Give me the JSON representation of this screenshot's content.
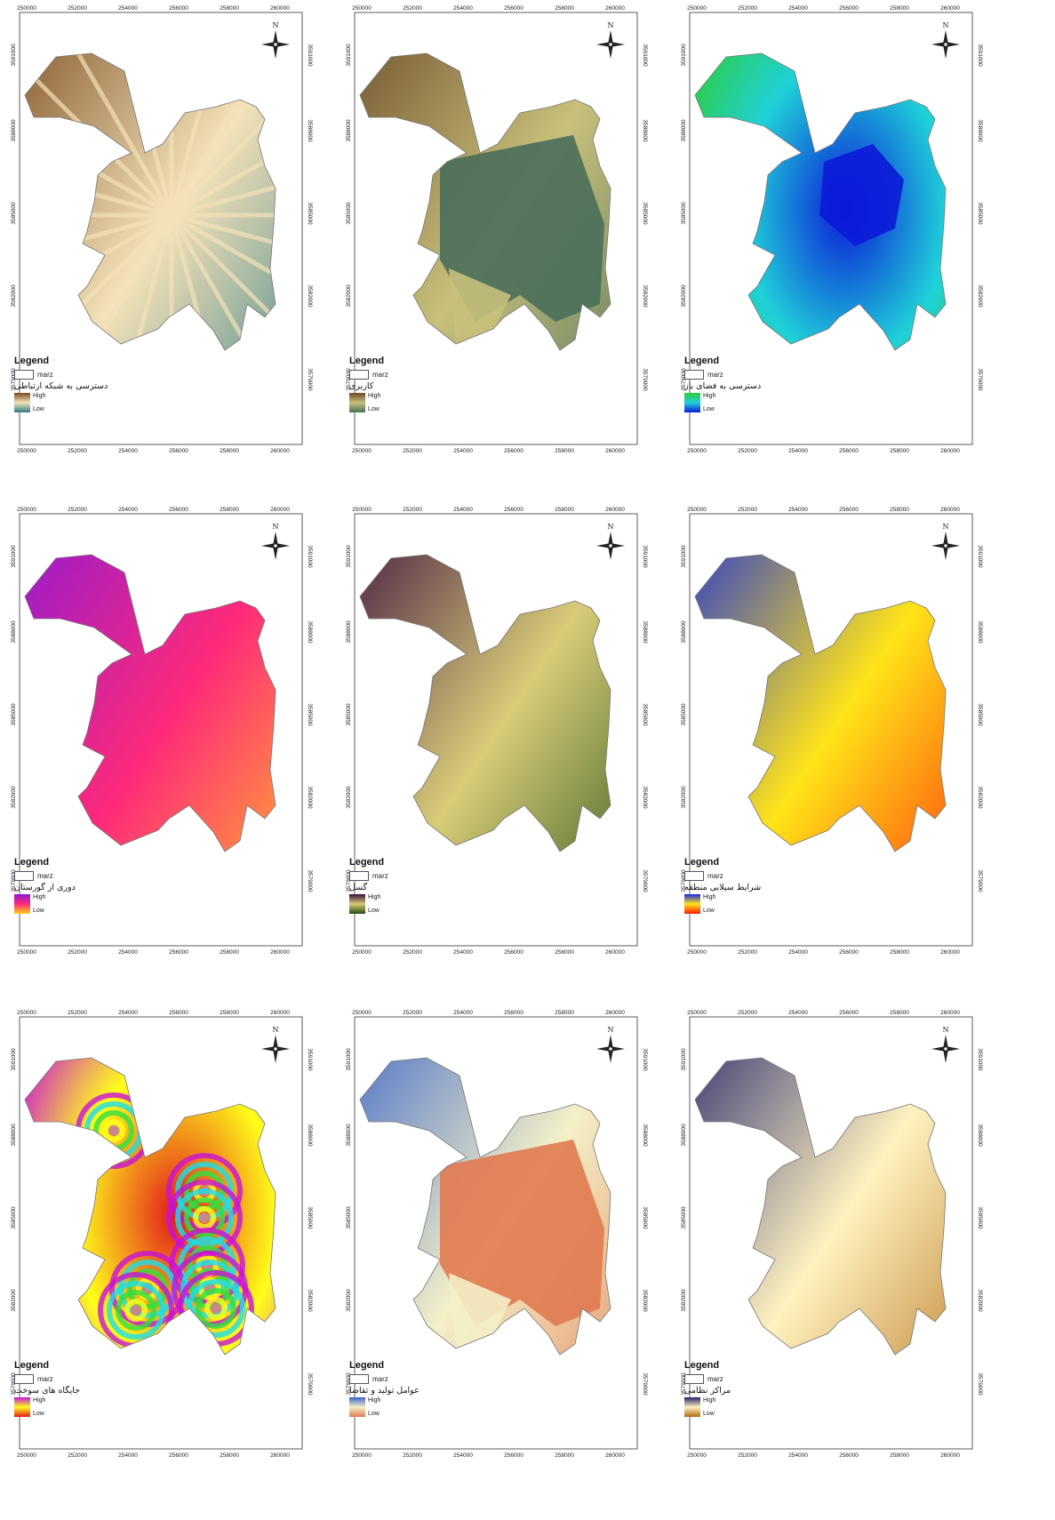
{
  "legend_title": "Legend",
  "boundary_label": "marz",
  "high_label": "High",
  "low_label": "Low",
  "north_label": "N",
  "x_ticks": [
    "250000",
    "252000",
    "254000",
    "256000",
    "258000",
    "260000"
  ],
  "y_ticks": [
    "3591000",
    "3588000",
    "3585000",
    "3582000",
    "3579000"
  ],
  "panels": [
    {
      "layer": "دسترسی به شبکه ارتباطی",
      "ramp_high": "#7a4a20",
      "ramp_mid": "#f4e2b8",
      "ramp_low": "#2f7a86",
      "pattern": "radial-bands"
    },
    {
      "layer": "کاربری",
      "ramp_high": "#6b4a2a",
      "ramp_mid": "#c8c07a",
      "ramp_low": "#4a6e5a",
      "pattern": "landuse"
    },
    {
      "layer": "دسترسی به فضای باز",
      "ramp_high": "#2ecc3a",
      "ramp_mid": "#1fd1d8",
      "ramp_low": "#0b1ad8",
      "pattern": "green-blue"
    },
    {
      "layer": "دوری از گورستان",
      "ramp_high": "#8a18d8",
      "ramp_mid": "#ff2a7a",
      "ramp_low": "#ffd21a",
      "pattern": "magenta-orange"
    },
    {
      "layer": "گسل",
      "ramp_high": "#3a0c3e",
      "ramp_mid": "#d8cc78",
      "ramp_low": "#1e4a12",
      "pattern": "purple-olive"
    },
    {
      "layer": "شرایط سیلابی منطقه",
      "ramp_high": "#1428e0",
      "ramp_mid": "#ffe418",
      "ramp_low": "#ff1a0a",
      "pattern": "rainbow"
    },
    {
      "layer": "جایگاه های سوخت",
      "ramp_high": "#c812d8",
      "ramp_mid": "#ffff1a",
      "ramp_low": "#e21a1a",
      "pattern": "rings"
    },
    {
      "layer": "عوامل تولید و تقاضا",
      "ramp_high": "#3a64c8",
      "ramp_mid": "#f4f0c8",
      "ramp_low": "#e07a50",
      "pattern": "categorical"
    },
    {
      "layer": "مراکز نظامی",
      "ramp_high": "#20226a",
      "ramp_mid": "#fff2c0",
      "ramp_low": "#b06810",
      "pattern": "brown-navy"
    }
  ]
}
